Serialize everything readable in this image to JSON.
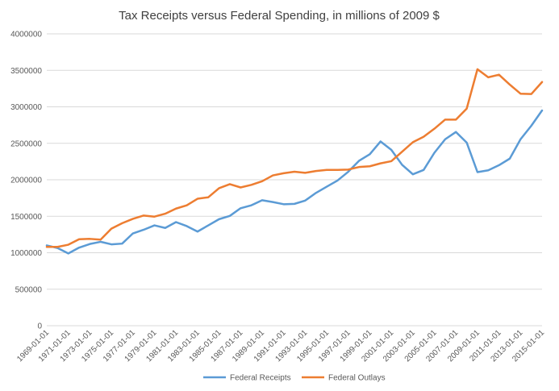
{
  "chart_data": {
    "type": "line",
    "title": "Tax Receipts versus Federal Spending, in millions of 2009 $",
    "xlabel": "",
    "ylabel": "",
    "ylim": [
      0,
      4000000
    ],
    "y_ticks": [
      0,
      500000,
      1000000,
      1500000,
      2000000,
      2500000,
      3000000,
      3500000,
      4000000
    ],
    "y_tick_labels": [
      "0",
      "500000",
      "1000000",
      "1500000",
      "2000000",
      "2500000",
      "3000000",
      "3500000",
      "4000000"
    ],
    "x": [
      1969,
      1970,
      1971,
      1972,
      1973,
      1974,
      1975,
      1976,
      1977,
      1978,
      1979,
      1980,
      1981,
      1982,
      1983,
      1984,
      1985,
      1986,
      1987,
      1988,
      1989,
      1990,
      1991,
      1992,
      1993,
      1994,
      1995,
      1996,
      1997,
      1998,
      1999,
      2000,
      2001,
      2002,
      2003,
      2004,
      2005,
      2006,
      2007,
      2008,
      2009,
      2010,
      2011,
      2012,
      2013,
      2014,
      2015
    ],
    "x_tick_labels": [
      "1969-01-01",
      "1971-01-01",
      "1973-01-01",
      "1975-01-01",
      "1977-01-01",
      "1979-01-01",
      "1981-01-01",
      "1983-01-01",
      "1985-01-01",
      "1987-01-01",
      "1989-01-01",
      "1991-01-01",
      "1993-01-01",
      "1995-01-01",
      "1997-01-01",
      "1999-01-01",
      "2001-01-01",
      "2003-01-01",
      "2005-01-01",
      "2007-01-01",
      "2009-01-01",
      "2011-01-01",
      "2013-01-01",
      "2015-01-01"
    ],
    "x_tick_years": [
      1969,
      1971,
      1973,
      1975,
      1977,
      1979,
      1981,
      1983,
      1985,
      1987,
      1989,
      1991,
      1993,
      1995,
      1997,
      1999,
      2001,
      2003,
      2005,
      2007,
      2009,
      2011,
      2013,
      2015
    ],
    "grid": "horizontal",
    "legend_position": "bottom",
    "series": [
      {
        "name": "Federal Receipts",
        "color": "#5B9BD5",
        "values": [
          1100000,
          1065000,
          990000,
          1070000,
          1120000,
          1150000,
          1115000,
          1125000,
          1265000,
          1315000,
          1375000,
          1340000,
          1420000,
          1365000,
          1290000,
          1375000,
          1460000,
          1505000,
          1610000,
          1650000,
          1720000,
          1695000,
          1665000,
          1670000,
          1715000,
          1820000,
          1905000,
          1990000,
          2110000,
          2260000,
          2350000,
          2525000,
          2410000,
          2205000,
          2075000,
          2135000,
          2370000,
          2555000,
          2655000,
          2510000,
          2105000,
          2130000,
          2200000,
          2290000,
          2555000,
          2740000,
          2950000
        ]
      },
      {
        "name": "Federal Outlays",
        "color": "#ED7D31",
        "values": [
          1080000,
          1080000,
          1110000,
          1185000,
          1190000,
          1180000,
          1330000,
          1405000,
          1465000,
          1510000,
          1495000,
          1535000,
          1605000,
          1650000,
          1740000,
          1760000,
          1885000,
          1940000,
          1895000,
          1930000,
          1980000,
          2060000,
          2090000,
          2110000,
          2095000,
          2120000,
          2135000,
          2135000,
          2140000,
          2175000,
          2185000,
          2225000,
          2255000,
          2385000,
          2515000,
          2590000,
          2700000,
          2825000,
          2825000,
          2975000,
          3515000,
          3405000,
          3440000,
          3305000,
          3180000,
          3175000,
          3340000
        ]
      }
    ]
  }
}
